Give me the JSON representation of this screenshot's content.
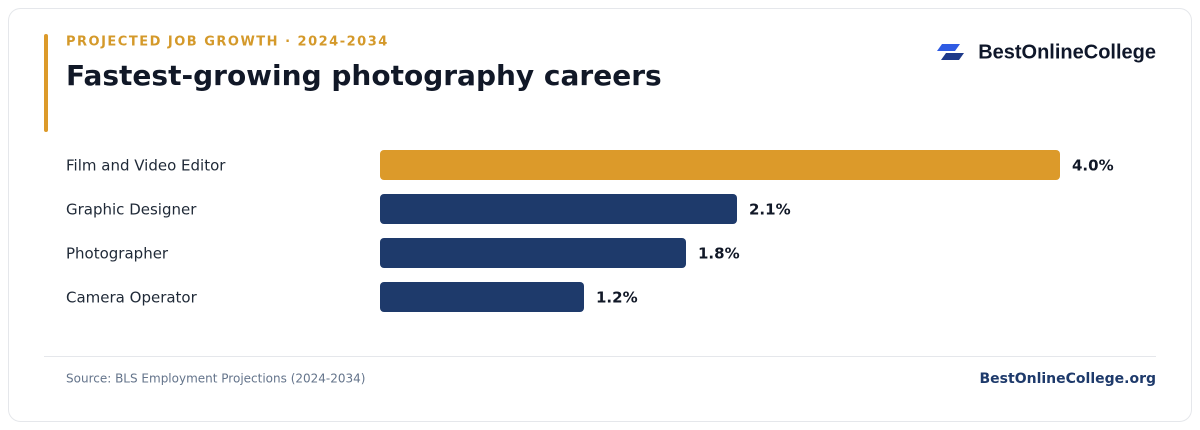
{
  "chart_data": {
    "type": "bar",
    "eyebrow": "PROJECTED JOB GROWTH · 2024-2034",
    "title": "Fastest-growing photography careers",
    "brand": "BestOnlineCollege",
    "categories": [
      "Film and Video Editor",
      "Graphic Designer",
      "Photographer",
      "Camera Operator"
    ],
    "values": [
      4.0,
      2.1,
      1.8,
      1.2
    ],
    "value_labels": [
      "4.0%",
      "2.1%",
      "1.8%",
      "1.2%"
    ],
    "colors": [
      "#dc9a2a",
      "#1e3a6b",
      "#1e3a6b",
      "#1e3a6b"
    ],
    "source": "Source: BLS Employment Projections (2024-2034)",
    "footer_link": "BestOnlineCollege.org"
  }
}
